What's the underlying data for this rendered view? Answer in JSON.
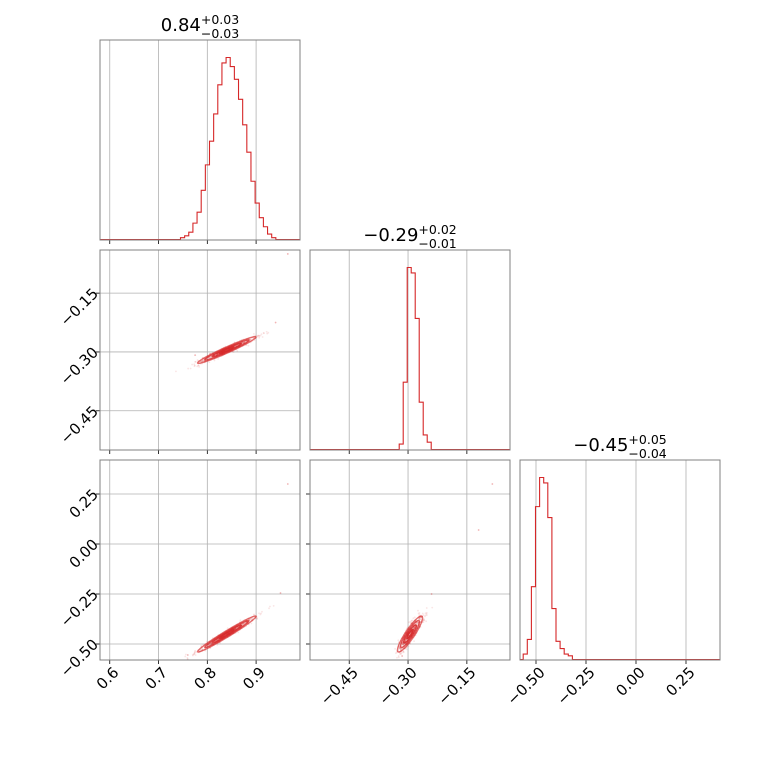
{
  "chart_data": {
    "type": "corner",
    "color": "#d62728",
    "parameters": [
      {
        "title_main": "0.84",
        "title_plus": "+0.03",
        "title_minus": "−0.03",
        "range": [
          0.58,
          0.99
        ],
        "ticks": [
          0.6,
          0.7,
          0.8,
          0.9
        ],
        "tick_labels": [
          "0.6",
          "0.7",
          "0.8",
          "0.9"
        ],
        "hist": {
          "bin_width": 0.00845,
          "bin_starts": [
            0.745,
            0.7535,
            0.762,
            0.7705,
            0.779,
            0.7875,
            0.796,
            0.8045,
            0.813,
            0.8215,
            0.83,
            0.8385,
            0.847,
            0.8555,
            0.864,
            0.8725,
            0.881,
            0.8895,
            0.898,
            0.9065,
            0.915,
            0.9235,
            0.932
          ],
          "counts": [
            0.01,
            0.02,
            0.04,
            0.09,
            0.15,
            0.27,
            0.41,
            0.54,
            0.69,
            0.85,
            0.97,
            1.0,
            0.95,
            0.88,
            0.77,
            0.63,
            0.48,
            0.32,
            0.2,
            0.12,
            0.07,
            0.03,
            0.01
          ]
        }
      },
      {
        "title_main": "−0.29",
        "title_plus": "+0.02",
        "title_minus": "−0.01",
        "range": [
          -0.55,
          -0.04
        ],
        "ticks": [
          -0.45,
          -0.3,
          -0.15
        ],
        "tick_labels": [
          "−0.45",
          "−0.30",
          "−0.15"
        ],
        "hist": {
          "bin_width": 0.0102,
          "bin_starts": [
            -0.3225,
            -0.3123,
            -0.3021,
            -0.2919,
            -0.2817,
            -0.2715,
            -0.2613,
            -0.2511
          ],
          "counts": [
            0.03,
            0.37,
            1.0,
            0.97,
            0.72,
            0.26,
            0.08,
            0.04
          ]
        }
      },
      {
        "title_main": "−0.45",
        "title_plus": "+0.05",
        "title_minus": "−0.04",
        "range": [
          -0.58,
          0.42
        ],
        "ticks": [
          -0.5,
          -0.25,
          0.0,
          0.25
        ],
        "tick_labels": [
          "−0.50",
          "−0.25",
          "0.00",
          "0.25"
        ],
        "hist": {
          "bin_width": 0.0205,
          "bin_starts": [
            -0.564,
            -0.5435,
            -0.523,
            -0.5025,
            -0.482,
            -0.4615,
            -0.441,
            -0.4205,
            -0.4,
            -0.3795,
            -0.359,
            -0.3385
          ],
          "counts": [
            0.03,
            0.11,
            0.4,
            0.84,
            1.0,
            0.97,
            0.78,
            0.28,
            0.1,
            0.06,
            0.03,
            0.02
          ]
        }
      }
    ],
    "pairs": [
      {
        "x_param": 0,
        "y_param": 1,
        "mean": [
          0.84,
          -0.295
        ],
        "sd": [
          0.03,
          0.017
        ],
        "corr": 0.97,
        "outliers": [
          [
            0.965,
            -0.05
          ],
          [
            0.795,
            -0.318
          ],
          [
            0.775,
            -0.308
          ],
          [
            0.94,
            -0.225
          ]
        ]
      },
      {
        "x_param": 0,
        "y_param": 2,
        "mean": [
          0.84,
          -0.45
        ],
        "sd": [
          0.03,
          0.045
        ],
        "corr": 0.98,
        "outliers": [
          [
            0.965,
            0.3
          ],
          [
            0.76,
            -0.555
          ],
          [
            0.95,
            -0.245
          ]
        ]
      },
      {
        "x_param": 1,
        "y_param": 2,
        "mean": [
          -0.295,
          -0.45
        ],
        "sd": [
          0.016,
          0.045
        ],
        "corr": 0.9,
        "outliers": [
          [
            -0.085,
            0.3
          ],
          [
            -0.12,
            0.07
          ],
          [
            -0.24,
            -0.25
          ],
          [
            -0.315,
            -0.56
          ]
        ]
      }
    ],
    "contour_levels_sigma": [
      0.5,
      1.0,
      1.5,
      2.0
    ],
    "grid": true
  }
}
